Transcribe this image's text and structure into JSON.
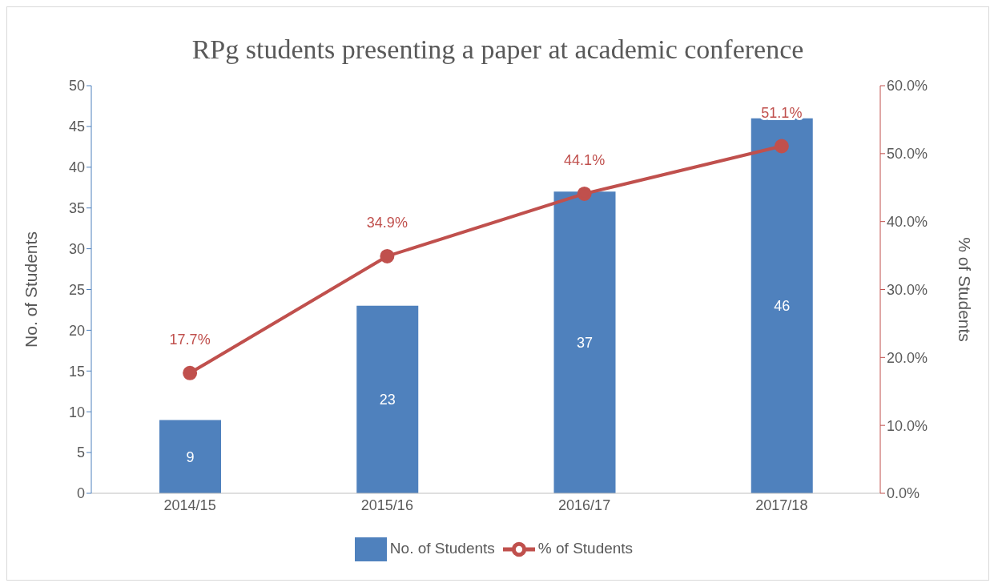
{
  "chart_data": {
    "type": "bar",
    "title": "RPg students presenting a paper at academic conference",
    "ylabel": "No. of Students",
    "y2label": "% of Students",
    "categories": [
      "2014/15",
      "2015/16",
      "2016/17",
      "2017/18"
    ],
    "series": [
      {
        "name": "No. of Students",
        "color": "#4f81bd",
        "values": [
          9,
          23,
          37,
          46
        ]
      },
      {
        "name": "% of Students",
        "type": "line",
        "color": "#c0504d",
        "axis": "y2",
        "values": [
          17.7,
          34.9,
          44.1,
          51.1
        ],
        "value_labels": [
          "17.7%",
          "34.9%",
          "44.1%",
          "51.1%"
        ]
      }
    ],
    "ylim": [
      0,
      50
    ],
    "yticks": [
      0,
      5,
      10,
      15,
      20,
      25,
      30,
      35,
      40,
      45,
      50
    ],
    "y2lim": [
      0,
      60
    ],
    "y2ticks": [
      {
        "value": 0,
        "label": "0.0%"
      },
      {
        "value": 10,
        "label": "10.0%"
      },
      {
        "value": 20,
        "label": "20.0%"
      },
      {
        "value": 30,
        "label": "30.0%"
      },
      {
        "value": 40,
        "label": "40.0%"
      },
      {
        "value": 50,
        "label": "50.0%"
      },
      {
        "value": 60,
        "label": "60.0%"
      }
    ],
    "data_labels": true,
    "grid": false,
    "legend": "bottom",
    "marker": "circle",
    "line_style": "solid"
  }
}
